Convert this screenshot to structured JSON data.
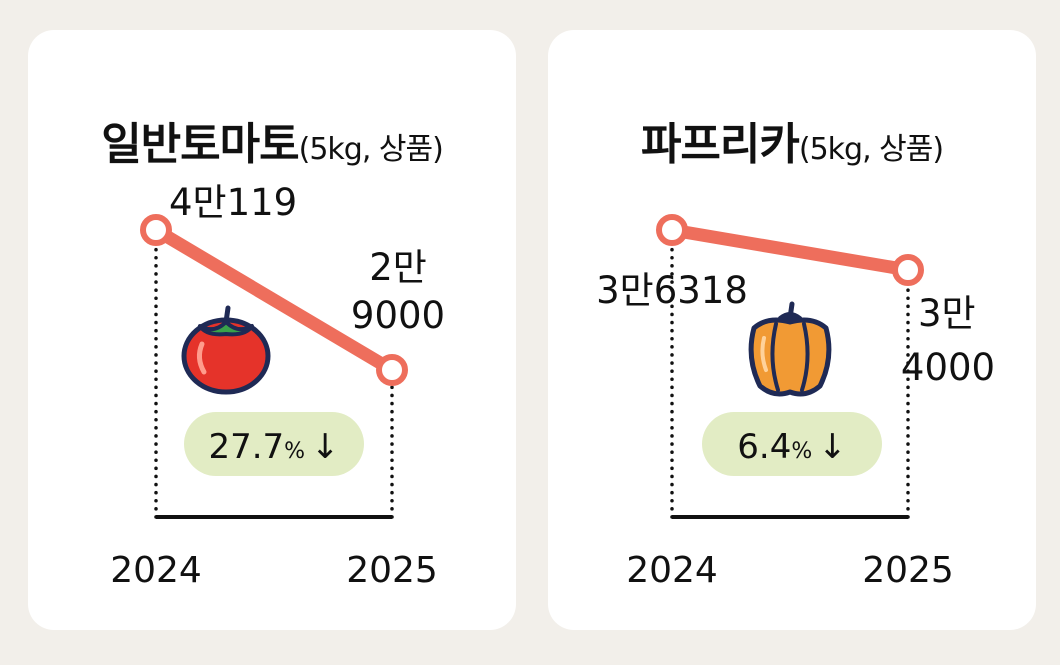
{
  "chart_data": [
    {
      "type": "line",
      "title": "일반토마토",
      "subtitle": "(5kg, 상품)",
      "x": [
        "2024",
        "2025"
      ],
      "series": [
        {
          "values": [
            40119,
            29000
          ]
        }
      ],
      "value_labels": [
        [
          "4만119"
        ],
        [
          "2만",
          "9000"
        ]
      ],
      "change_label": "27.7",
      "change_unit": "%",
      "change_arrow": "↓",
      "icon": "tomato-icon",
      "colors": {
        "line": "#ee6e5c",
        "badge": "#e2ecc4",
        "icon": "#e5332a"
      }
    },
    {
      "type": "line",
      "title": "파프리카",
      "subtitle": "(5kg, 상품)",
      "x": [
        "2024",
        "2025"
      ],
      "series": [
        {
          "values": [
            36318,
            34000
          ]
        }
      ],
      "value_labels": [
        [
          "3만6318"
        ],
        [
          "3만",
          "4000"
        ]
      ],
      "change_label": "6.4",
      "change_unit": "%",
      "change_arrow": "↓",
      "icon": "paprika-icon",
      "colors": {
        "line": "#ee6e5c",
        "badge": "#e2ecc4",
        "icon": "#f19a34"
      }
    }
  ]
}
